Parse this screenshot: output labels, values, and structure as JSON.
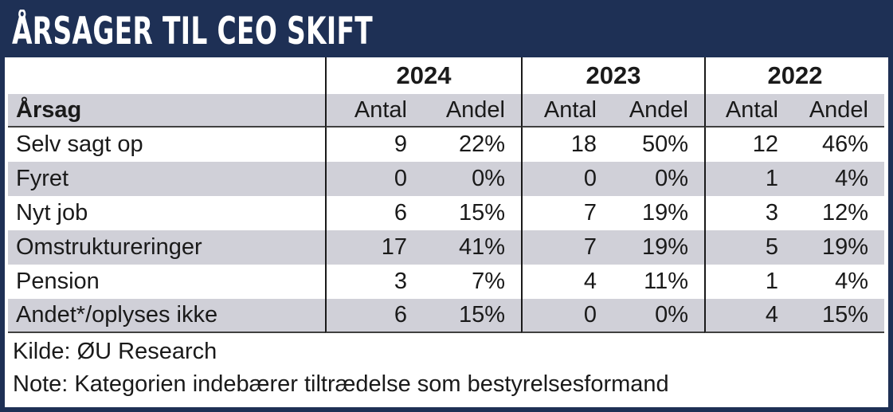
{
  "title": "ÅRSAGER TIL CEO SKIFT",
  "table": {
    "row_header_label": "Årsag",
    "year_groups": [
      "2024",
      "2023",
      "2022"
    ],
    "sub_headers": [
      "Antal",
      "Andel"
    ],
    "rows": [
      {
        "label": "Selv sagt op",
        "values": [
          "9",
          "22%",
          "18",
          "50%",
          "12",
          "46%"
        ]
      },
      {
        "label": "Fyret",
        "values": [
          "0",
          "0%",
          "0",
          "0%",
          "1",
          "4%"
        ]
      },
      {
        "label": "Nyt job",
        "values": [
          "6",
          "15%",
          "7",
          "19%",
          "3",
          "12%"
        ]
      },
      {
        "label": "Omstruktureringer",
        "values": [
          "17",
          "41%",
          "7",
          "19%",
          "5",
          "19%"
        ]
      },
      {
        "label": "Pension",
        "values": [
          "3",
          "7%",
          "4",
          "11%",
          "1",
          "4%"
        ]
      },
      {
        "label": "Andet*/oplyses ikke",
        "values": [
          "6",
          "15%",
          "0",
          "0%",
          "4",
          "15%"
        ]
      }
    ]
  },
  "footer": {
    "source": "Kilde: ØU Research",
    "note": "Note: Kategorien indebærer tiltrædelse som bestyrelsesformand"
  },
  "colors": {
    "navy": "#1e3055",
    "stripe_gray": "#d0d0d8",
    "divider_dark": "#404040",
    "text": "#1a1a1a"
  },
  "chart_data": {
    "type": "table",
    "title": "ÅRSAGER TIL CEO SKIFT",
    "row_header": "Årsag",
    "column_groups": [
      "2024",
      "2023",
      "2022"
    ],
    "sub_columns": [
      "Antal",
      "Andel"
    ],
    "rows": [
      {
        "category": "Selv sagt op",
        "2024": {
          "antal": 9,
          "andel": "22%"
        },
        "2023": {
          "antal": 18,
          "andel": "50%"
        },
        "2022": {
          "antal": 12,
          "andel": "46%"
        }
      },
      {
        "category": "Fyret",
        "2024": {
          "antal": 0,
          "andel": "0%"
        },
        "2023": {
          "antal": 0,
          "andel": "0%"
        },
        "2022": {
          "antal": 1,
          "andel": "4%"
        }
      },
      {
        "category": "Nyt job",
        "2024": {
          "antal": 6,
          "andel": "15%"
        },
        "2023": {
          "antal": 7,
          "andel": "19%"
        },
        "2022": {
          "antal": 3,
          "andel": "12%"
        }
      },
      {
        "category": "Omstruktureringer",
        "2024": {
          "antal": 17,
          "andel": "41%"
        },
        "2023": {
          "antal": 7,
          "andel": "19%"
        },
        "2022": {
          "antal": 5,
          "andel": "19%"
        }
      },
      {
        "category": "Pension",
        "2024": {
          "antal": 3,
          "andel": "7%"
        },
        "2023": {
          "antal": 4,
          "andel": "11%"
        },
        "2022": {
          "antal": 1,
          "andel": "4%"
        }
      },
      {
        "category": "Andet*/oplyses ikke",
        "2024": {
          "antal": 6,
          "andel": "15%"
        },
        "2023": {
          "antal": 0,
          "andel": "0%"
        },
        "2022": {
          "antal": 4,
          "andel": "15%"
        }
      }
    ],
    "source": "Kilde: ØU Research",
    "note": "Note: Kategorien indebærer tiltrædelse som bestyrelsesformand"
  }
}
